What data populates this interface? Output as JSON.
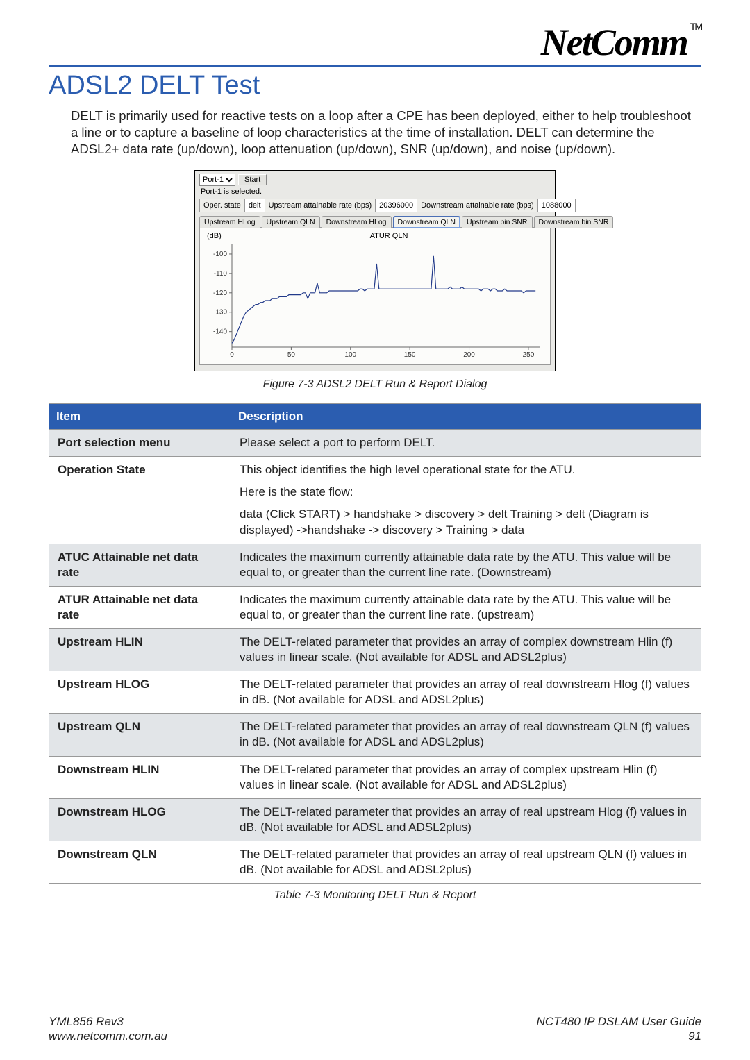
{
  "brand": {
    "name": "NetComm",
    "tm": "TM"
  },
  "page_title": "ADSL2 DELT Test",
  "intro": "DELT is primarily used for reactive tests on a loop after a CPE has been deployed, either to help troubleshoot a line or to capture a baseline of loop characteristics at the time of installation. DELT can determine the ADSL2+ data rate (up/down), loop attenuation (up/down), SNR (up/down), and noise (up/down).",
  "screenshot": {
    "port_select_label": "Port-1",
    "start_btn": "Start",
    "cursor_note": "",
    "selected_label": "Port-1 is selected.",
    "info_table": {
      "oper_state_label": "Oper. state",
      "oper_state_value": "delt",
      "up_rate_label": "Upstream attainable rate (bps)",
      "up_rate_value": "20396000",
      "down_rate_label": "Downstream attainable rate (bps)",
      "down_rate_value": "1088000"
    },
    "tabs": [
      "Upstream HLog",
      "Upstream QLN",
      "Downstream HLog",
      "Downstream QLN",
      "Upstream bin SNR",
      "Downstream bin SNR"
    ],
    "selected_tab_index": 3,
    "chart": {
      "type": "line",
      "y_axis_label": "(dB)",
      "title": "ATUR QLN",
      "background_color": "#fcfcfa",
      "line_color": "#223a8a",
      "axis_color": "#666666",
      "xlim": [
        0,
        260
      ],
      "ylim": [
        -148,
        -95
      ],
      "xticks": [
        0,
        50,
        100,
        150,
        200,
        250
      ],
      "yticks": [
        -100,
        -110,
        -120,
        -130,
        -140
      ],
      "x": [
        0,
        2,
        4,
        6,
        8,
        10,
        12,
        14,
        16,
        18,
        20,
        22,
        24,
        26,
        28,
        30,
        32,
        34,
        36,
        38,
        40,
        42,
        44,
        46,
        48,
        50,
        52,
        54,
        56,
        58,
        60,
        62,
        64,
        66,
        68,
        70,
        72,
        74,
        76,
        78,
        80,
        82,
        84,
        86,
        88,
        90,
        92,
        94,
        96,
        98,
        100,
        102,
        104,
        106,
        108,
        110,
        112,
        114,
        116,
        118,
        120,
        122,
        124,
        126,
        128,
        130,
        132,
        134,
        136,
        138,
        140,
        142,
        144,
        146,
        148,
        150,
        152,
        154,
        156,
        158,
        160,
        162,
        164,
        166,
        168,
        170,
        172,
        174,
        176,
        178,
        180,
        182,
        184,
        186,
        188,
        190,
        192,
        194,
        196,
        198,
        200,
        202,
        204,
        206,
        208,
        210,
        212,
        214,
        216,
        218,
        220,
        222,
        224,
        226,
        228,
        230,
        232,
        234,
        236,
        238,
        240,
        242,
        244,
        246,
        248,
        250,
        252,
        254,
        256
      ],
      "y": [
        -146,
        -144,
        -141,
        -138,
        -135,
        -132,
        -130,
        -129,
        -128,
        -127,
        -126,
        -126,
        -125,
        -125,
        -124,
        -124,
        -124,
        -123,
        -123,
        -123,
        -122,
        -122,
        -122,
        -122,
        -121,
        -121,
        -121,
        -121,
        -121,
        -121,
        -120,
        -120,
        -123,
        -120,
        -120,
        -120,
        -115,
        -120,
        -120,
        -120,
        -120,
        -119,
        -119,
        -119,
        -119,
        -119,
        -119,
        -119,
        -119,
        -119,
        -119,
        -119,
        -119,
        -119,
        -118,
        -118,
        -119,
        -118,
        -118,
        -118,
        -118,
        -105,
        -118,
        -118,
        -118,
        -118,
        -118,
        -118,
        -118,
        -118,
        -118,
        -118,
        -118,
        -118,
        -118,
        -118,
        -118,
        -118,
        -118,
        -118,
        -118,
        -118,
        -118,
        -118,
        -118,
        -101,
        -118,
        -118,
        -118,
        -118,
        -118,
        -118,
        -117,
        -118,
        -118,
        -118,
        -118,
        -117,
        -118,
        -118,
        -118,
        -118,
        -118,
        -118,
        -118,
        -119,
        -118,
        -118,
        -118,
        -119,
        -118,
        -118,
        -119,
        -119,
        -119,
        -118,
        -119,
        -119,
        -119,
        -119,
        -119,
        -119,
        -119,
        -120,
        -119,
        -119,
        -119,
        -119,
        -119
      ]
    }
  },
  "figure_caption": "Figure 7-3 ADSL2 DELT Run & Report Dialog",
  "table": {
    "headers": {
      "item": "Item",
      "desc": "Description"
    },
    "rows": [
      {
        "shade": true,
        "item": "Port selection menu",
        "desc_paras": [
          "Please select a port to perform DELT."
        ]
      },
      {
        "shade": false,
        "item": "Operation State",
        "desc_paras": [
          "This object identifies the high level operational state for the ATU.",
          "Here is the state flow:",
          "data (Click START) > handshake > discovery > delt Training > delt (Diagram is displayed) ->handshake -> discovery > Training > data"
        ]
      },
      {
        "shade": true,
        "item": "ATUC Attainable net data rate",
        "desc_paras": [
          "Indicates the maximum currently attainable data rate by the ATU. This value will be equal to, or greater than the current line rate. (Downstream)"
        ]
      },
      {
        "shade": false,
        "item": "ATUR Attainable net data rate",
        "desc_paras": [
          "Indicates the maximum currently attainable data rate by the ATU. This value will be equal to, or greater than the current line rate. (upstream)"
        ]
      },
      {
        "shade": true,
        "item": "Upstream HLIN",
        "desc_paras": [
          "The DELT-related parameter that provides an array of complex downstream Hlin (f) values in linear scale. (Not available for ADSL and ADSL2plus)"
        ]
      },
      {
        "shade": false,
        "item": "Upstream HLOG",
        "desc_paras": [
          "The DELT-related parameter that provides an array of real downstream Hlog (f) values in dB. (Not available for ADSL and ADSL2plus)"
        ]
      },
      {
        "shade": true,
        "item": "Upstream QLN",
        "desc_paras": [
          "The DELT-related parameter that provides an array of real downstream QLN (f) values in dB. (Not available for ADSL and ADSL2plus)"
        ]
      },
      {
        "shade": false,
        "item": "Downstream HLIN",
        "desc_paras": [
          "The DELT-related parameter that provides an array of complex upstream Hlin (f) values in linear scale. (Not available for ADSL and ADSL2plus)"
        ]
      },
      {
        "shade": true,
        "item": "Downstream HLOG",
        "desc_paras": [
          "The DELT-related parameter that provides an array of real upstream Hlog (f) values in dB. (Not available for ADSL and ADSL2plus)"
        ]
      },
      {
        "shade": false,
        "item": "Downstream QLN",
        "desc_paras": [
          "The DELT-related parameter that provides an array of real upstream QLN (f) values in dB. (Not available for ADSL and ADSL2plus)"
        ]
      }
    ]
  },
  "table_caption": "Table 7-3 Monitoring DELT Run & Report",
  "footer": {
    "left1": "YML856 Rev3",
    "left2": "www.netcomm.com.au",
    "right1": "NCT480 IP DSLAM User Guide",
    "right2": "91"
  },
  "colors": {
    "accent": "#2b5db0",
    "table_header_bg": "#2b5db0",
    "shade_row_bg": "#e2e5e8",
    "border": "#999999"
  }
}
